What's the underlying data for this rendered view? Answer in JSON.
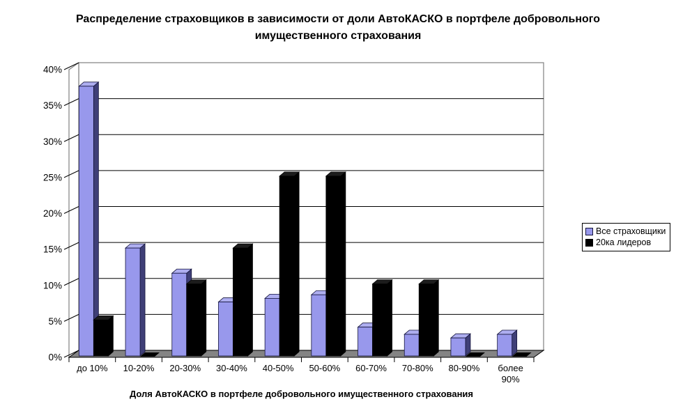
{
  "title": "Распределение страховщиков в зависимости от доли АвтоКАСКО в портфеле добровольного имущественного страхования",
  "chart_data": {
    "type": "bar",
    "style": "3d-column",
    "title": "Распределение страховщиков в зависимости от доли АвтоКАСКО в портфеле добровольного имущественного страхования",
    "xlabel": "Доля АвтоКАСКО в портфеле добровольного имущественного страхования",
    "ylabel": "",
    "ylim": [
      0,
      40
    ],
    "ytick_step": 5,
    "ytick_labels": [
      "0%",
      "5%",
      "10%",
      "15%",
      "20%",
      "25%",
      "30%",
      "35%",
      "40%"
    ],
    "grid": true,
    "legend_position": "right",
    "categories": [
      "до 10%",
      "10-20%",
      "20-30%",
      "30-40%",
      "40-50%",
      "50-60%",
      "60-70%",
      "70-80%",
      "80-90%",
      "более 90%"
    ],
    "series": [
      {
        "name": "Все страховщики",
        "color": "#9898EC",
        "values": [
          37.5,
          15,
          11.5,
          7.5,
          8,
          8.5,
          4,
          3,
          2.5,
          3
        ]
      },
      {
        "name": "20ка лидеров",
        "color": "#000000",
        "values": [
          5,
          0,
          10,
          15,
          25,
          25,
          10,
          10,
          0,
          0
        ]
      }
    ],
    "colors": {
      "bar1_front": "#9898EC",
      "bar1_top": "#AEAEF0",
      "bar1_side": "#3F3F77",
      "bar2_front": "#000000",
      "bar2_top": "#1C1C1C",
      "bar2_side": "#000000",
      "floor": "#848484",
      "wall": "#FFFFFF",
      "wall_border": "#808080",
      "gridline": "#000000"
    }
  },
  "legend": {
    "items": [
      {
        "label": "Все страховщики"
      },
      {
        "label": "20ка лидеров"
      }
    ]
  }
}
